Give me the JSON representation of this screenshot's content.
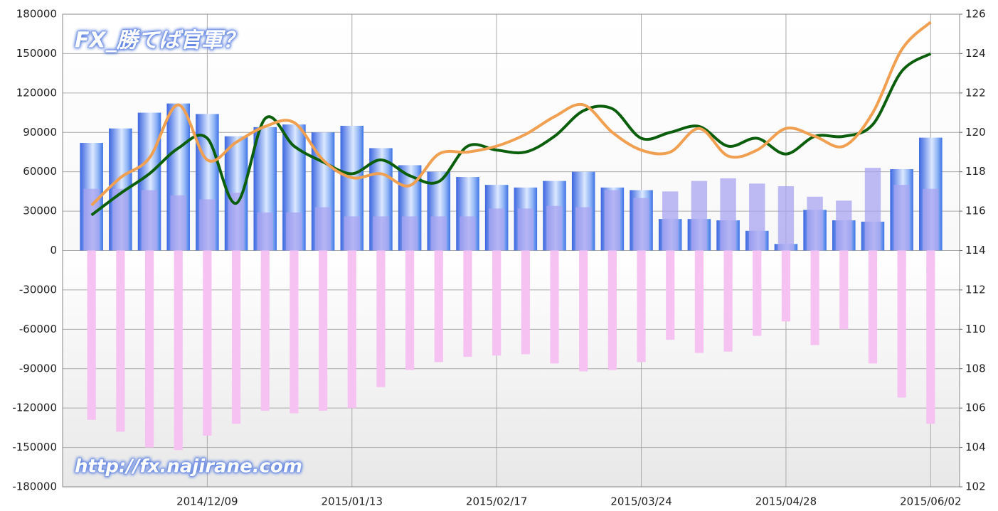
{
  "chart_data": {
    "type": "bar",
    "annotations": [
      "FX_勝てば官軍？",
      "http://fx.najirane.com"
    ],
    "categories": [
      null,
      null,
      null,
      null,
      "2014/12/09",
      null,
      null,
      null,
      null,
      "2015/01/13",
      null,
      null,
      null,
      null,
      "2015/02/17",
      null,
      null,
      null,
      null,
      "2015/03/24",
      null,
      null,
      null,
      null,
      "2015/04/28",
      null,
      null,
      null,
      null,
      "2015/06/02"
    ],
    "series": [
      {
        "type": "bar",
        "color": "#4a7fe8",
        "values": [
          82000,
          93000,
          105000,
          112000,
          104000,
          87000,
          94000,
          96000,
          90000,
          95000,
          78000,
          65000,
          60000,
          56000,
          50000,
          48000,
          53000,
          60000,
          48000,
          46000,
          24000,
          24000,
          23000,
          15000,
          5000,
          31000,
          23000,
          22000,
          62000,
          86000
        ]
      },
      {
        "type": "bar",
        "color": "#a7a3f0",
        "values": [
          47000,
          47000,
          46000,
          42000,
          39000,
          44000,
          29000,
          29000,
          33000,
          26000,
          26000,
          26000,
          26000,
          26000,
          32000,
          32000,
          34000,
          33000,
          46000,
          40000,
          45000,
          53000,
          55000,
          51000,
          49000,
          41000,
          38000,
          63000,
          50000,
          47000
        ]
      },
      {
        "type": "bar",
        "color": "#f6c2f2",
        "values": [
          -129000,
          -138000,
          -150000,
          -152000,
          -141000,
          -132000,
          -122000,
          -124000,
          -122000,
          -120000,
          -104000,
          -91000,
          -85000,
          -81000,
          -80000,
          -79000,
          -86000,
          -92000,
          -91000,
          -85000,
          -68000,
          -78000,
          -77000,
          -65000,
          -54000,
          -72000,
          -60000,
          -86000,
          -112000,
          -132000
        ]
      },
      {
        "type": "line",
        "axis": "y2",
        "color": "#0b5e0b",
        "values": [
          115.8,
          116.9,
          117.9,
          119.2,
          119.7,
          116.4,
          120.7,
          119.3,
          118.5,
          117.9,
          118.6,
          117.8,
          117.5,
          119.3,
          119.1,
          119.0,
          119.8,
          121.1,
          121.2,
          119.7,
          120.0,
          120.3,
          119.3,
          119.7,
          118.9,
          119.8,
          119.8,
          120.4,
          123.1,
          124.0
        ]
      },
      {
        "type": "line",
        "axis": "y2",
        "color": "#f0a050",
        "values": [
          116.3,
          117.7,
          118.7,
          121.4,
          118.6,
          119.5,
          120.3,
          120.5,
          118.6,
          117.7,
          117.9,
          117.3,
          118.9,
          119.0,
          119.3,
          119.9,
          120.8,
          121.4,
          120.0,
          119.1,
          119.0,
          120.2,
          118.8,
          119.1,
          120.2,
          119.8,
          119.3,
          121.0,
          124.2,
          125.6
        ]
      }
    ],
    "ylim": [
      -180000,
      180000
    ],
    "yticks": [
      -180000,
      -150000,
      -120000,
      -90000,
      -60000,
      -30000,
      0,
      30000,
      60000,
      90000,
      120000,
      150000,
      180000
    ],
    "y2lim": [
      102,
      126
    ],
    "y2ticks": [
      102,
      104,
      106,
      108,
      110,
      112,
      114,
      116,
      118,
      120,
      122,
      124,
      126
    ],
    "grid": true
  }
}
